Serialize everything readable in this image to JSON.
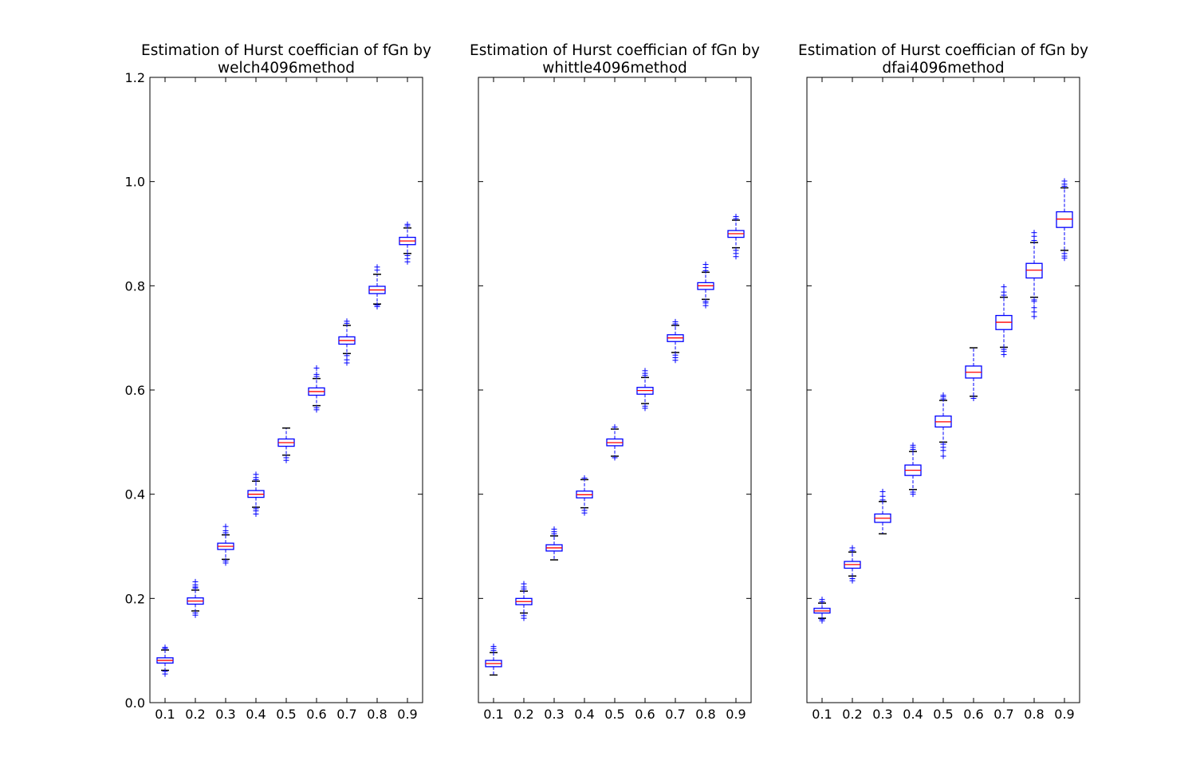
{
  "chart_data": [
    {
      "type": "box",
      "title": [
        "Estimation of Hurst coeffician of fGn by",
        "welch4096method"
      ],
      "categories": [
        "0.1",
        "0.2",
        "0.3",
        "0.4",
        "0.5",
        "0.6",
        "0.7",
        "0.8",
        "0.9"
      ],
      "y_ticks": [
        "0.0",
        "0.2",
        "0.4",
        "0.6",
        "0.8",
        "1.0",
        "1.2"
      ],
      "ylim": [
        0,
        1.2
      ],
      "grid": false,
      "series": [
        {
          "q1": 0.076,
          "median": 0.081,
          "q3": 0.086,
          "whisker_low": 0.062,
          "whisker_high": 0.101,
          "outliers": [
            0.055,
            0.06,
            0.104,
            0.106
          ]
        },
        {
          "q1": 0.189,
          "median": 0.195,
          "q3": 0.201,
          "whisker_low": 0.176,
          "whisker_high": 0.216,
          "outliers": [
            0.168,
            0.172,
            0.22,
            0.222,
            0.226,
            0.232
          ]
        },
        {
          "q1": 0.294,
          "median": 0.3,
          "q3": 0.306,
          "whisker_low": 0.275,
          "whisker_high": 0.322,
          "outliers": [
            0.268,
            0.272,
            0.326,
            0.33,
            0.338
          ]
        },
        {
          "q1": 0.394,
          "median": 0.4,
          "q3": 0.407,
          "whisker_low": 0.375,
          "whisker_high": 0.425,
          "outliers": [
            0.362,
            0.368,
            0.372,
            0.428,
            0.432,
            0.438
          ]
        },
        {
          "q1": 0.492,
          "median": 0.499,
          "q3": 0.506,
          "whisker_low": 0.475,
          "whisker_high": 0.527,
          "outliers": [
            0.465,
            0.47
          ]
        },
        {
          "q1": 0.59,
          "median": 0.597,
          "q3": 0.604,
          "whisker_low": 0.57,
          "whisker_high": 0.622,
          "outliers": [
            0.562,
            0.566,
            0.626,
            0.63,
            0.642
          ]
        },
        {
          "q1": 0.688,
          "median": 0.695,
          "q3": 0.702,
          "whisker_low": 0.67,
          "whisker_high": 0.724,
          "outliers": [
            0.652,
            0.658,
            0.666,
            0.728,
            0.732
          ]
        },
        {
          "q1": 0.785,
          "median": 0.792,
          "q3": 0.799,
          "whisker_low": 0.765,
          "whisker_high": 0.822,
          "outliers": [
            0.76,
            0.763,
            0.83,
            0.836
          ]
        },
        {
          "q1": 0.879,
          "median": 0.886,
          "q3": 0.893,
          "whisker_low": 0.862,
          "whisker_high": 0.911,
          "outliers": [
            0.846,
            0.852,
            0.858,
            0.915,
            0.918
          ]
        }
      ]
    },
    {
      "type": "box",
      "title": [
        "Estimation of Hurst coeffician of fGn by",
        "whittle4096method"
      ],
      "categories": [
        "0.1",
        "0.2",
        "0.3",
        "0.4",
        "0.5",
        "0.6",
        "0.7",
        "0.8",
        "0.9"
      ],
      "y_ticks": [
        "",
        "",
        "",
        "",
        "",
        "",
        ""
      ],
      "ylim": [
        0,
        1.2
      ],
      "grid": false,
      "series": [
        {
          "q1": 0.069,
          "median": 0.075,
          "q3": 0.081,
          "whisker_low": 0.053,
          "whisker_high": 0.096,
          "outliers": [
            0.1,
            0.104,
            0.108
          ]
        },
        {
          "q1": 0.188,
          "median": 0.194,
          "q3": 0.2,
          "whisker_low": 0.172,
          "whisker_high": 0.214,
          "outliers": [
            0.162,
            0.167,
            0.218,
            0.222,
            0.228
          ]
        },
        {
          "q1": 0.291,
          "median": 0.297,
          "q3": 0.303,
          "whisker_low": 0.274,
          "whisker_high": 0.32,
          "outliers": [
            0.324,
            0.328,
            0.333
          ]
        },
        {
          "q1": 0.393,
          "median": 0.399,
          "q3": 0.406,
          "whisker_low": 0.374,
          "whisker_high": 0.428,
          "outliers": [
            0.364,
            0.369,
            0.431
          ]
        },
        {
          "q1": 0.493,
          "median": 0.499,
          "q3": 0.506,
          "whisker_low": 0.473,
          "whisker_high": 0.525,
          "outliers": [
            0.47,
            0.529
          ]
        },
        {
          "q1": 0.592,
          "median": 0.599,
          "q3": 0.605,
          "whisker_low": 0.574,
          "whisker_high": 0.624,
          "outliers": [
            0.565,
            0.569,
            0.628,
            0.632,
            0.637
          ]
        },
        {
          "q1": 0.693,
          "median": 0.7,
          "q3": 0.706,
          "whisker_low": 0.672,
          "whisker_high": 0.724,
          "outliers": [
            0.657,
            0.662,
            0.667,
            0.727,
            0.731
          ]
        },
        {
          "q1": 0.793,
          "median": 0.8,
          "q3": 0.806,
          "whisker_low": 0.774,
          "whisker_high": 0.826,
          "outliers": [
            0.762,
            0.767,
            0.77,
            0.829,
            0.835,
            0.841
          ]
        },
        {
          "q1": 0.893,
          "median": 0.9,
          "q3": 0.906,
          "whisker_low": 0.873,
          "whisker_high": 0.926,
          "outliers": [
            0.856,
            0.862,
            0.868,
            0.929,
            0.933
          ]
        }
      ]
    },
    {
      "type": "box",
      "title": [
        "Estimation of Hurst coeffician of fGn by",
        "dfai4096method"
      ],
      "categories": [
        "0.1",
        "0.2",
        "0.3",
        "0.4",
        "0.5",
        "0.6",
        "0.7",
        "0.8",
        "0.9"
      ],
      "y_ticks": [
        "",
        "",
        "",
        "",
        "",
        "",
        ""
      ],
      "ylim": [
        0,
        1.2
      ],
      "grid": false,
      "series": [
        {
          "q1": 0.172,
          "median": 0.176,
          "q3": 0.181,
          "whisker_low": 0.162,
          "whisker_high": 0.191,
          "outliers": [
            0.157,
            0.16,
            0.194,
            0.198
          ]
        },
        {
          "q1": 0.258,
          "median": 0.265,
          "q3": 0.271,
          "whisker_low": 0.243,
          "whisker_high": 0.289,
          "outliers": [
            0.234,
            0.238,
            0.292,
            0.297
          ]
        },
        {
          "q1": 0.346,
          "median": 0.354,
          "q3": 0.362,
          "whisker_low": 0.324,
          "whisker_high": 0.386,
          "outliers": [
            0.389,
            0.396,
            0.405
          ]
        },
        {
          "q1": 0.436,
          "median": 0.446,
          "q3": 0.456,
          "whisker_low": 0.409,
          "whisker_high": 0.482,
          "outliers": [
            0.4,
            0.404,
            0.486,
            0.49,
            0.494
          ]
        },
        {
          "q1": 0.529,
          "median": 0.539,
          "q3": 0.55,
          "whisker_low": 0.5,
          "whisker_high": 0.58,
          "outliers": [
            0.473,
            0.484,
            0.49,
            0.496,
            0.583,
            0.587,
            0.59
          ]
        },
        {
          "q1": 0.623,
          "median": 0.634,
          "q3": 0.646,
          "whisker_low": 0.588,
          "whisker_high": 0.681,
          "outliers": [
            0.584
          ]
        },
        {
          "q1": 0.716,
          "median": 0.73,
          "q3": 0.743,
          "whisker_low": 0.682,
          "whisker_high": 0.778,
          "outliers": [
            0.668,
            0.674,
            0.678,
            0.782,
            0.788,
            0.798
          ]
        },
        {
          "q1": 0.815,
          "median": 0.83,
          "q3": 0.843,
          "whisker_low": 0.778,
          "whisker_high": 0.883,
          "outliers": [
            0.741,
            0.75,
            0.758,
            0.77,
            0.773,
            0.887,
            0.895,
            0.902
          ]
        },
        {
          "q1": 0.912,
          "median": 0.928,
          "q3": 0.942,
          "whisker_low": 0.868,
          "whisker_high": 0.988,
          "outliers": [
            0.853,
            0.857,
            0.862,
            0.991,
            0.995,
            1.001
          ]
        }
      ]
    }
  ],
  "colors": {
    "box": "#0000ff",
    "median": "#ff0000",
    "axes": "#000000"
  }
}
